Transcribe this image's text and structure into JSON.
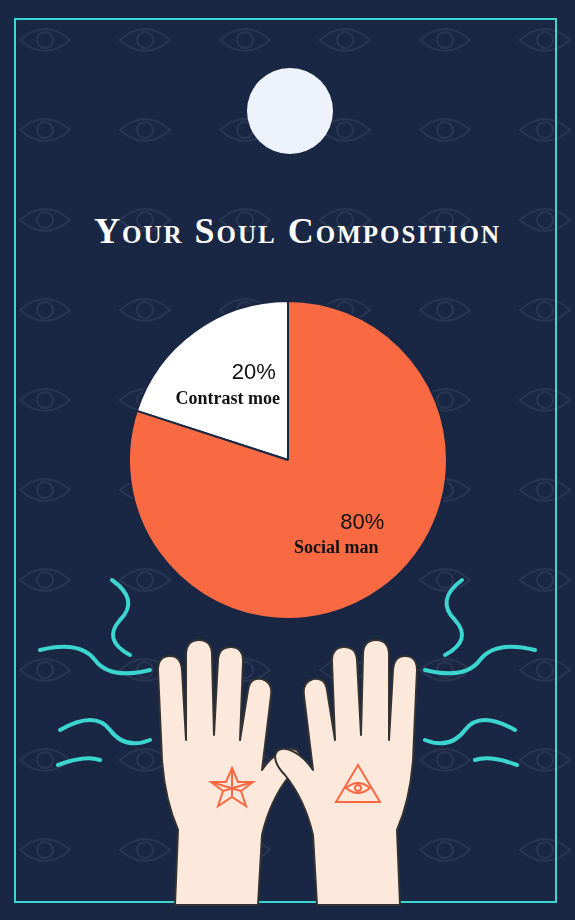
{
  "chart_data": {
    "type": "pie",
    "title": "Your Soul Composition",
    "categories": [
      "Contrast moe",
      "Social man"
    ],
    "values": [
      20,
      80
    ],
    "value_labels": [
      "20%",
      "80%"
    ],
    "colors": [
      "#ffffff",
      "#f96a43"
    ],
    "data_labels": true
  }
}
